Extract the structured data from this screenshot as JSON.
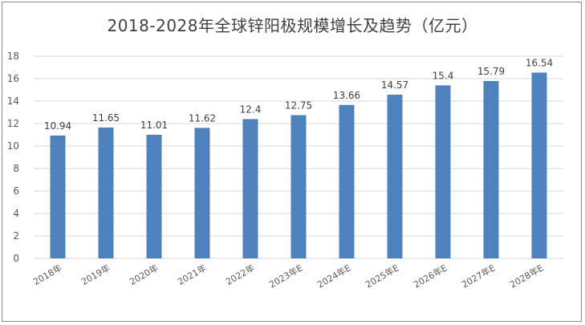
{
  "chart_data": {
    "type": "bar",
    "title": "2018-2028年全球锌阳极规模增长及趋势（亿元）",
    "categories": [
      "2018年",
      "2019年",
      "2020年",
      "2021年",
      "2022年",
      "2023年E",
      "2024年E",
      "2025年E",
      "2026年E",
      "2027年E",
      "2028年E"
    ],
    "values": [
      10.94,
      11.65,
      11.01,
      11.62,
      12.4,
      12.75,
      13.66,
      14.57,
      15.4,
      15.79,
      16.54
    ],
    "data_labels": [
      "10.94",
      "11.65",
      "11.01",
      "11.62",
      "12.4",
      "12.75",
      "13.66",
      "14.57",
      "15.4",
      "15.79",
      "16.54"
    ],
    "ylim": [
      0,
      18
    ],
    "yticks": [
      "0",
      "2",
      "4",
      "6",
      "8",
      "10",
      "12",
      "14",
      "16",
      "18"
    ],
    "grid": true,
    "legend": "none",
    "bar_color": "#4F81BD",
    "grid_color": "#d9d9d9"
  }
}
